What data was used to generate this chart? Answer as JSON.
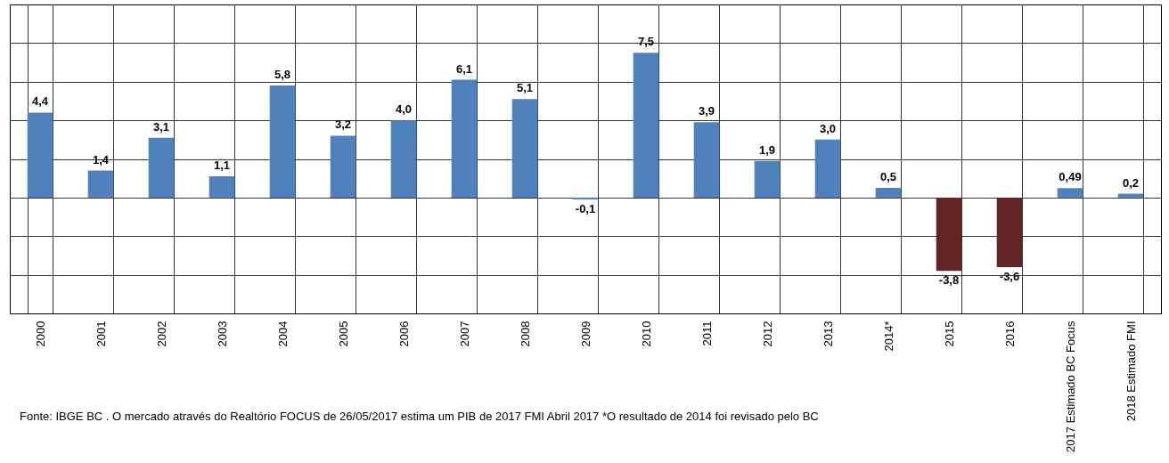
{
  "chart_data": {
    "type": "bar",
    "categories": [
      "2000",
      "2001",
      "2002",
      "2003",
      "2004",
      "2005",
      "2006",
      "2007",
      "2008",
      "2009",
      "2010",
      "2011",
      "2012",
      "2013",
      "2014*",
      "2015",
      "2016",
      "2017 Estimado BC Focus",
      "2018 Estimado FMI"
    ],
    "values": [
      4.4,
      1.4,
      3.1,
      1.1,
      5.8,
      3.2,
      4.0,
      6.1,
      5.1,
      -0.1,
      7.5,
      3.9,
      1.9,
      3.0,
      0.5,
      -3.8,
      -3.6,
      0.49,
      0.2
    ],
    "value_labels": [
      "4,4",
      "1,4",
      "3,1",
      "1,1",
      "5,8",
      "3,2",
      "4,0",
      "6,1",
      "5,1",
      "-0,1",
      "7,5",
      "3,9",
      "1,9",
      "3,0",
      "0,5",
      "-3,8",
      "-3,6",
      "0,49",
      "0,2"
    ],
    "colors": [
      "#4f81bd",
      "#4f81bd",
      "#4f81bd",
      "#4f81bd",
      "#4f81bd",
      "#4f81bd",
      "#4f81bd",
      "#4f81bd",
      "#4f81bd",
      "#4f81bd",
      "#4f81bd",
      "#4f81bd",
      "#4f81bd",
      "#4f81bd",
      "#4f81bd",
      "#632523",
      "#632523",
      "#4f81bd",
      "#4f81bd"
    ],
    "ylim": [
      -6,
      10
    ],
    "yticks": [
      {
        "value": -6,
        "label": null
      },
      {
        "value": -4,
        "label": null
      },
      {
        "value": -2,
        "label": null
      },
      {
        "value": 0,
        "label": null
      },
      {
        "value": 2,
        "label": null
      },
      {
        "value": 4,
        "label": null
      },
      {
        "value": 6,
        "label": null
      },
      {
        "value": 8,
        "label": null
      },
      {
        "value": 10,
        "label": null
      }
    ],
    "tick_labels": "x",
    "grid": true,
    "annotations": [
      "Fonte: IBGE BC . O mercado através do Realtório FOCUS de 26/05/2017 estima um PIB de 2017 FMI Abril 2017 *O resultado de 2014 foi revisado pelo BC"
    ]
  }
}
